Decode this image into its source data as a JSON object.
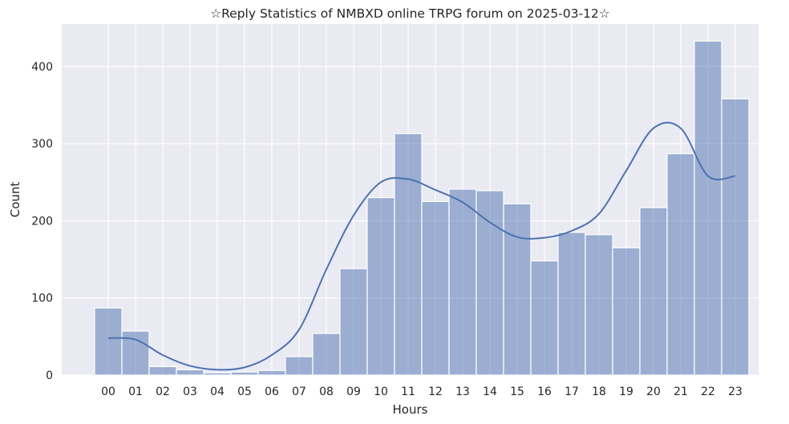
{
  "chart_data": {
    "type": "bar",
    "title": "☆Reply Statistics of NMBXD online TRPG forum on 2025-03-12☆",
    "xlabel": "Hours",
    "ylabel": "Count",
    "categories": [
      "00",
      "01",
      "02",
      "03",
      "04",
      "05",
      "06",
      "07",
      "08",
      "09",
      "10",
      "11",
      "12",
      "13",
      "14",
      "15",
      "16",
      "17",
      "18",
      "19",
      "20",
      "21",
      "22",
      "23"
    ],
    "values": [
      87,
      57,
      11,
      7,
      3,
      4,
      6,
      24,
      54,
      138,
      230,
      313,
      225,
      241,
      239,
      222,
      148,
      185,
      182,
      165,
      217,
      287,
      433,
      358
    ],
    "kde": [
      48,
      46,
      26,
      12,
      7,
      10,
      26,
      59,
      137,
      207,
      250,
      254,
      240,
      224,
      198,
      179,
      178,
      187,
      209,
      265,
      320,
      320,
      258,
      258
    ],
    "yticks": [
      0,
      100,
      200,
      300,
      400
    ],
    "ylim": [
      0,
      455
    ],
    "grid": true,
    "colors": {
      "bar_fill": "#4c72b0",
      "bar_opacity": "0.5",
      "kde_line": "#4c72b0",
      "background": "#eaeaf2",
      "grid": "#ffffff"
    }
  }
}
